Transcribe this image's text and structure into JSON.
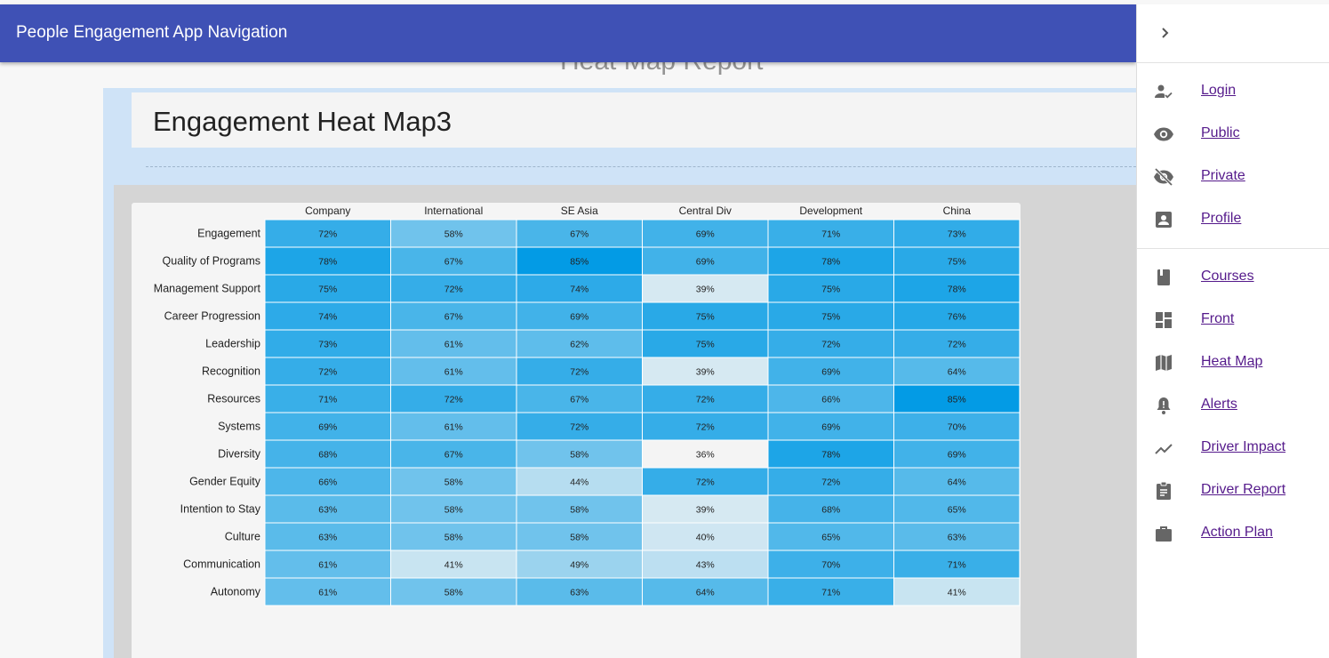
{
  "app": {
    "title": "People Engagement App Navigation"
  },
  "page": {
    "background_title": "Heat Map Report",
    "heading": "Engagement Heat Map3"
  },
  "drawer": {
    "close_icon": "chevron-right-icon",
    "items": [
      {
        "label": "Login",
        "icon": "person-check-icon"
      },
      {
        "label": "Public",
        "icon": "eye-icon"
      },
      {
        "label": "Private",
        "icon": "eye-off-icon"
      },
      {
        "label": "Profile",
        "icon": "account-box-icon"
      },
      {
        "label": "Courses",
        "icon": "book-icon"
      },
      {
        "label": "Front",
        "icon": "dashboard-icon"
      },
      {
        "label": "Heat Map",
        "icon": "map-icon"
      },
      {
        "label": "Alerts",
        "icon": "bell-alert-icon"
      },
      {
        "label": "Driver Impact",
        "icon": "trending-up-icon"
      },
      {
        "label": "Driver Report",
        "icon": "clipboard-icon"
      },
      {
        "label": "Action Plan",
        "icon": "briefcase-icon"
      }
    ]
  },
  "colors": {
    "primary": "#3f51b5",
    "link": "#551a8b",
    "heat_high": "#039be5",
    "heat_low": "#f4f4f4"
  },
  "chart_data": {
    "type": "heatmap",
    "title": "",
    "columns": [
      "Company",
      "International",
      "SE Asia",
      "Central Div",
      "Development",
      "China"
    ],
    "rows": [
      "Engagement",
      "Quality of Programs",
      "Management Support",
      "Career Progression",
      "Leadership",
      "Recognition",
      "Resources",
      "Systems",
      "Diversity",
      "Gender Equity",
      "Intention to Stay",
      "Culture",
      "Communication",
      "Autonomy"
    ],
    "values": [
      [
        72,
        58,
        67,
        69,
        71,
        73
      ],
      [
        78,
        67,
        85,
        69,
        78,
        75
      ],
      [
        75,
        72,
        74,
        39,
        75,
        78
      ],
      [
        74,
        67,
        69,
        75,
        75,
        76
      ],
      [
        73,
        61,
        62,
        75,
        72,
        72
      ],
      [
        72,
        61,
        72,
        39,
        69,
        64
      ],
      [
        71,
        72,
        67,
        72,
        66,
        85
      ],
      [
        69,
        61,
        72,
        72,
        69,
        70
      ],
      [
        68,
        67,
        58,
        36,
        78,
        69
      ],
      [
        66,
        58,
        44,
        72,
        72,
        64
      ],
      [
        63,
        58,
        58,
        39,
        68,
        65
      ],
      [
        63,
        58,
        58,
        40,
        65,
        63
      ],
      [
        61,
        41,
        49,
        43,
        70,
        71
      ],
      [
        61,
        58,
        63,
        64,
        71,
        41
      ]
    ],
    "value_suffix": "%",
    "color_range": [
      36,
      85
    ]
  }
}
